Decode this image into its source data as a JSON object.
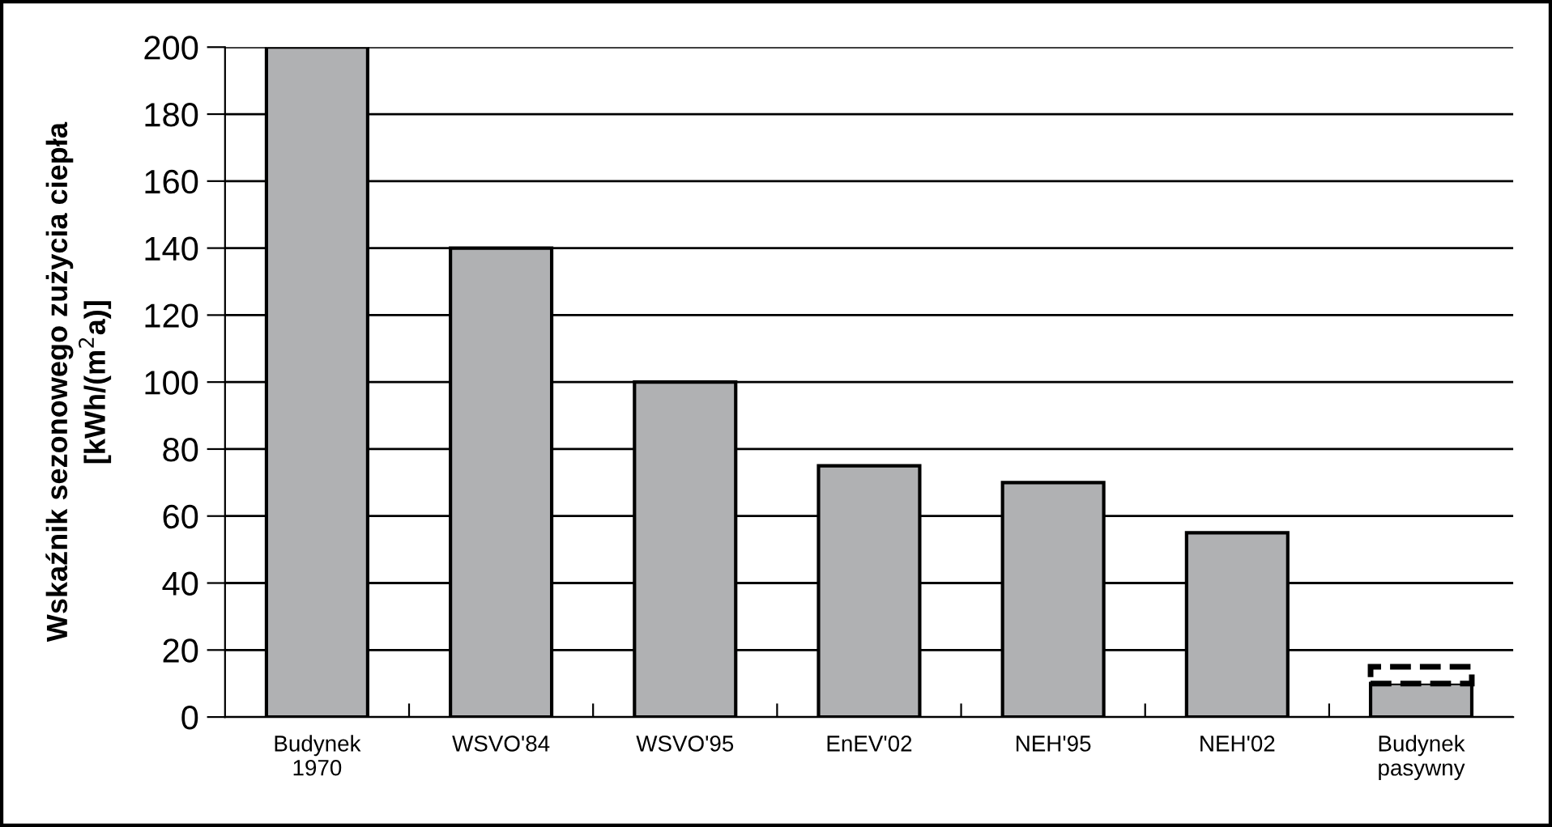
{
  "chart_data": {
    "type": "bar",
    "ylabel": "Wskaźnik sezonowego zużycia ciepła\n[kWh/(m$^{2}$a)]",
    "categories": [
      "Budynek\n1970",
      "WSVO'84",
      "WSVO'95",
      "EnEV'02",
      "NEH'95",
      "NEH'02",
      "Budynek\npasywny"
    ],
    "stacked": true,
    "series": [
      {
        "color": "#b0b1b3",
        "values": [
          200,
          140,
          100,
          75,
          70,
          55,
          10
        ]
      },
      {
        "color": "#ffffff",
        "line_style": "dashed",
        "values": [
          null,
          null,
          null,
          null,
          null,
          null,
          5
        ]
      }
    ],
    "ylim": [
      0,
      200
    ],
    "yticks": [
      0,
      20,
      40,
      60,
      80,
      100,
      120,
      140,
      160,
      180,
      200
    ],
    "grid": "y",
    "legend": false
  }
}
